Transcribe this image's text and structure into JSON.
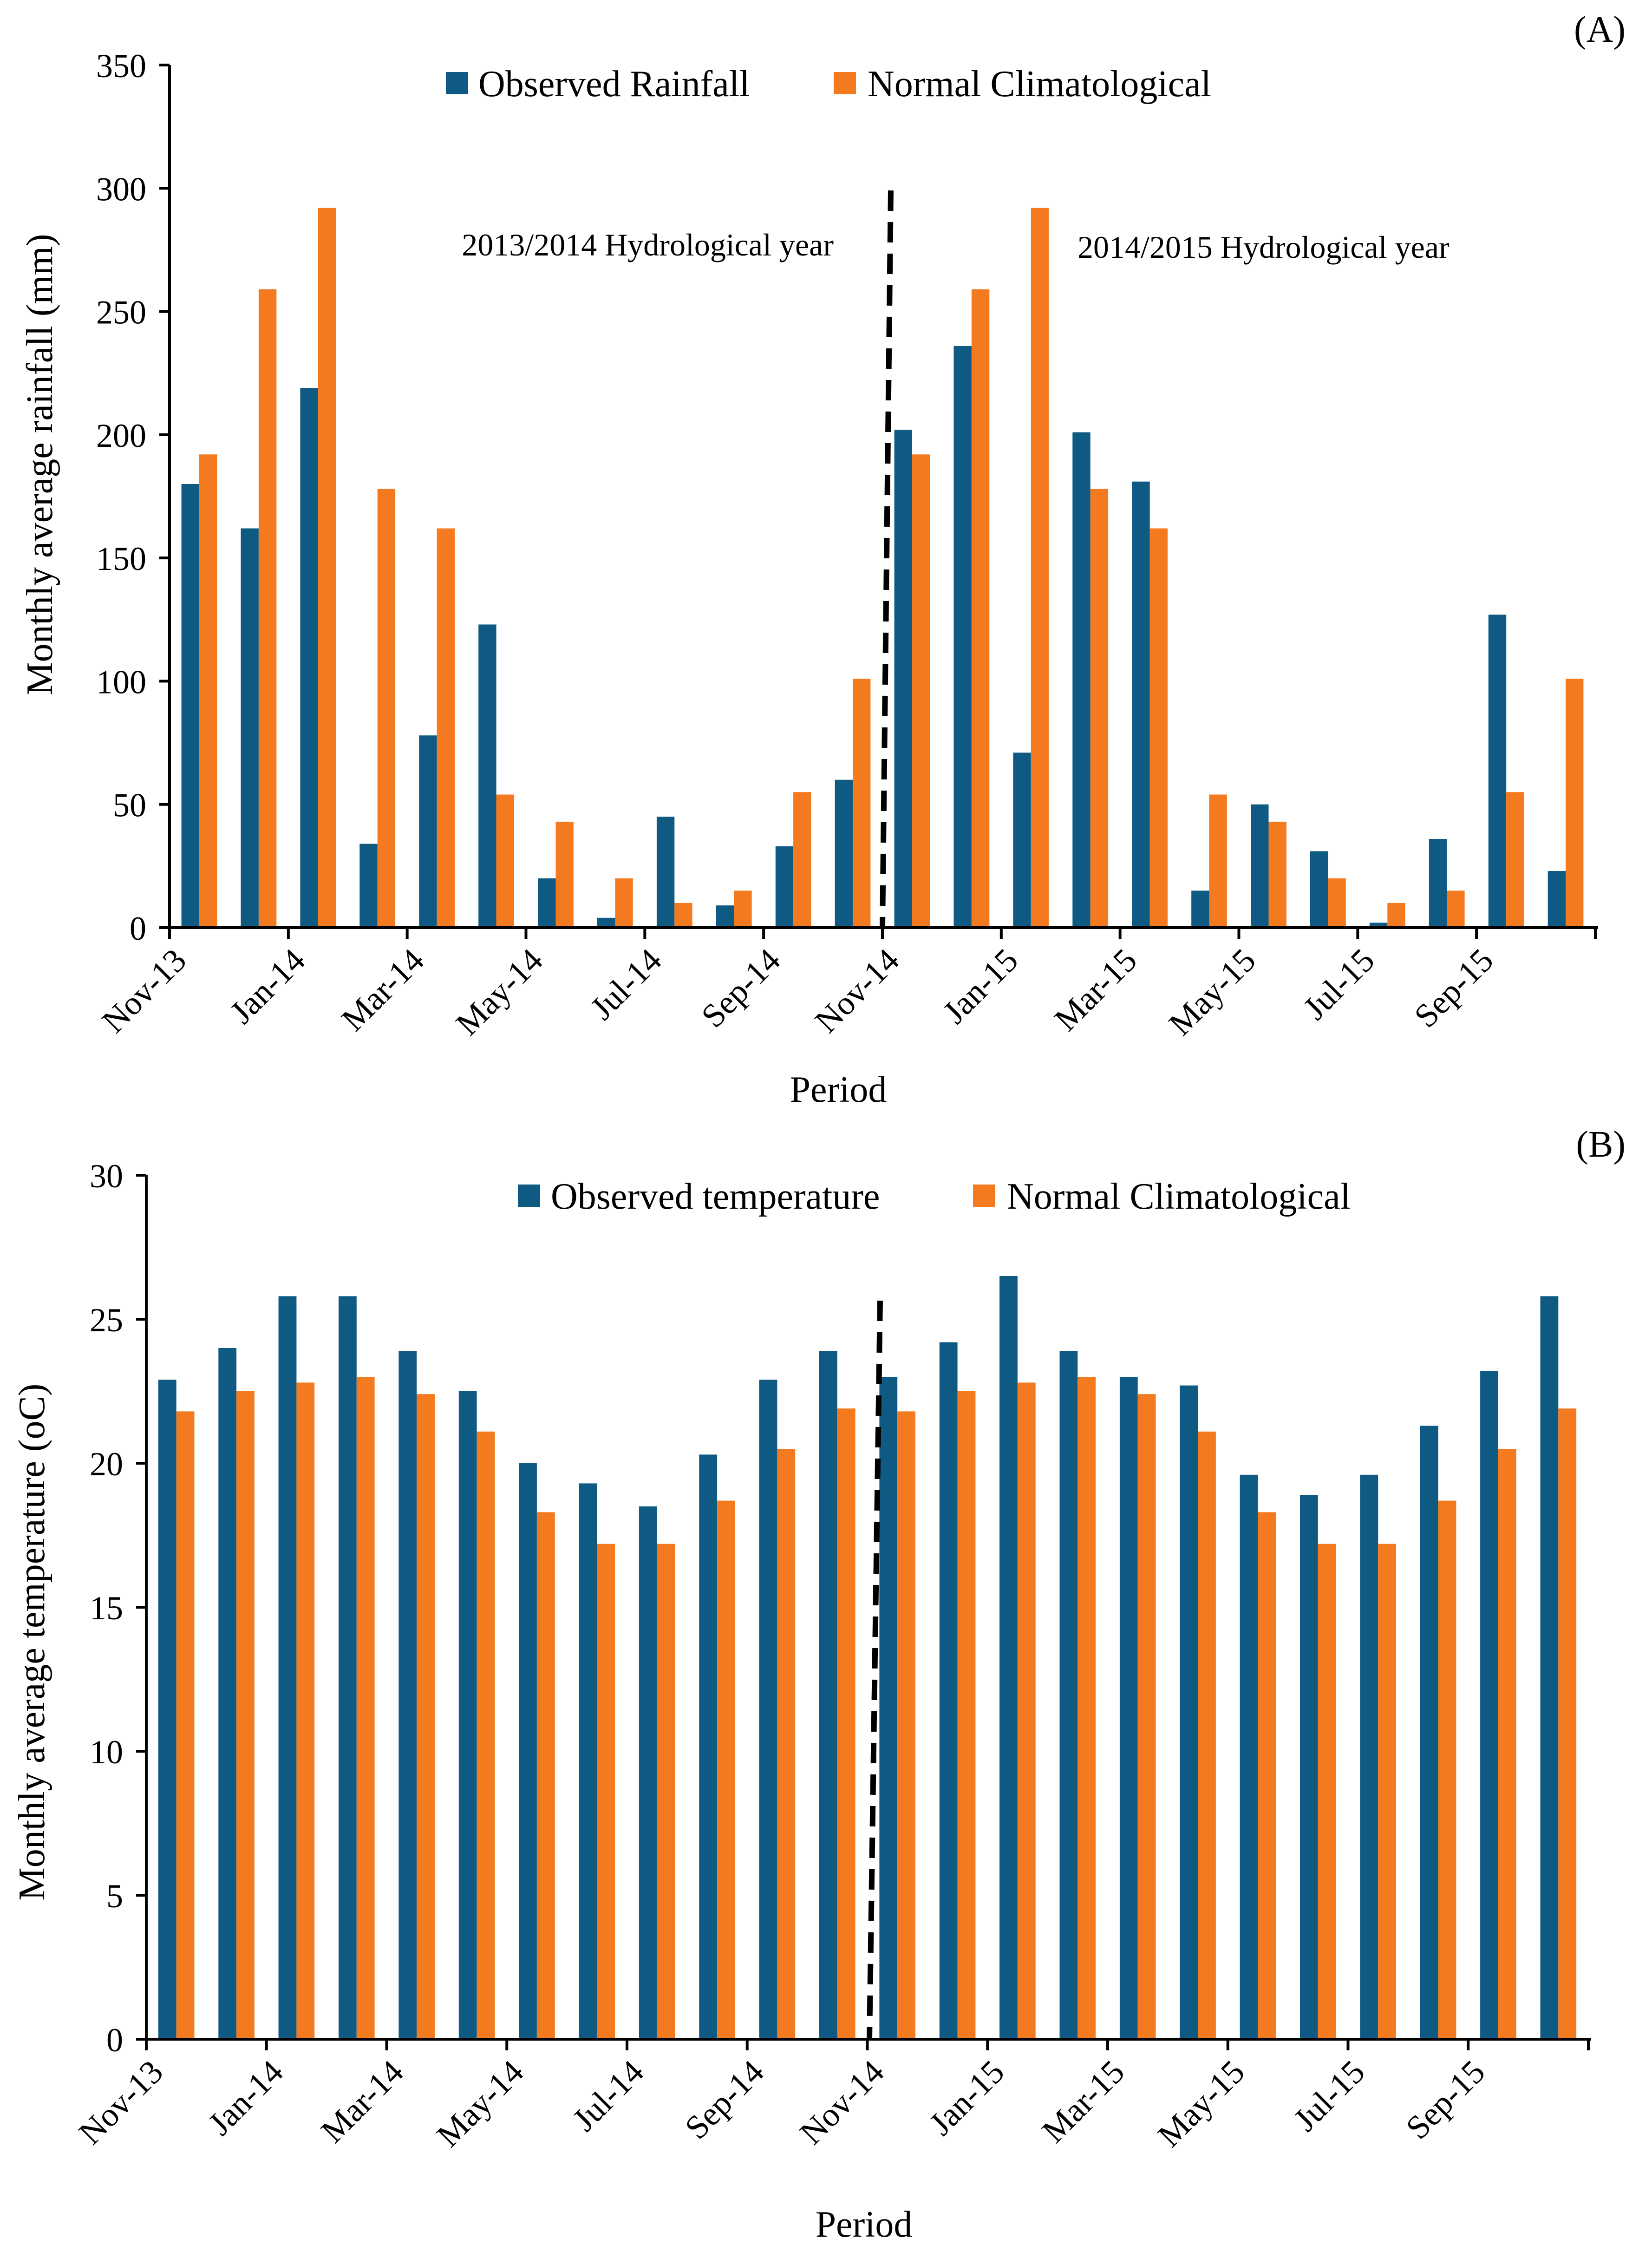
{
  "colors": {
    "observed": "#0F5A82",
    "normal": "#F47A20",
    "axis": "#000000"
  },
  "chart_data": [
    {
      "panel_label": "(A)",
      "type": "bar",
      "title": "",
      "xlabel": "Period",
      "ylabel": "Monthly average rainfall (mm)",
      "ylim": [
        0,
        350
      ],
      "yticks": [
        "0",
        "50",
        "100",
        "150",
        "200",
        "250",
        "300",
        "350"
      ],
      "categories": [
        "Nov-13",
        "Dec-13",
        "Jan-14",
        "Feb-14",
        "Mar-14",
        "Apr-14",
        "May-14",
        "Jun-14",
        "Jul-14",
        "Aug-14",
        "Sep-14",
        "Oct-14",
        "Nov-14",
        "Dec-14",
        "Jan-15",
        "Feb-15",
        "Mar-15",
        "Apr-15",
        "May-15",
        "Jun-15",
        "Jul-15",
        "Aug-15",
        "Sep-15",
        "Oct-15"
      ],
      "tick_labels": [
        "Nov-13",
        "Jan-14",
        "Mar-14",
        "May-14",
        "Jul-14",
        "Sep-14",
        "Nov-14",
        "Jan-15",
        "Mar-15",
        "May-15",
        "Jul-15",
        "Sep-15"
      ],
      "series": [
        {
          "name": "Observed Rainfall",
          "values": [
            180,
            162,
            219,
            34,
            78,
            123,
            20,
            4,
            45,
            9,
            33,
            60,
            202,
            236,
            71,
            201,
            181,
            15,
            50,
            31,
            2,
            36,
            127,
            23
          ]
        },
        {
          "name": "Normal Climatological",
          "values": [
            192,
            259,
            292,
            178,
            162,
            54,
            43,
            20,
            10,
            15,
            55,
            101,
            192,
            259,
            292,
            178,
            162,
            54,
            43,
            20,
            10,
            15,
            55,
            101
          ]
        }
      ],
      "annotations": [
        "2013/2014 Hydrological year",
        "2014/2015 Hydrological year"
      ],
      "legend_position": "top-center",
      "grid": false
    },
    {
      "panel_label": "(B)",
      "type": "bar",
      "title": "",
      "xlabel": "Period",
      "ylabel": "Monthly average temperature (oC)",
      "ylim": [
        0,
        30
      ],
      "yticks": [
        "0",
        "5",
        "10",
        "15",
        "20",
        "25",
        "30"
      ],
      "categories": [
        "Nov-13",
        "Dec-13",
        "Jan-14",
        "Feb-14",
        "Mar-14",
        "Apr-14",
        "May-14",
        "Jun-14",
        "Jul-14",
        "Aug-14",
        "Sep-14",
        "Oct-14",
        "Nov-14",
        "Dec-14",
        "Jan-15",
        "Feb-15",
        "Mar-15",
        "Apr-15",
        "May-15",
        "Jun-15",
        "Jul-15",
        "Aug-15",
        "Sep-15",
        "Oct-15"
      ],
      "tick_labels": [
        "Nov-13",
        "Jan-14",
        "Mar-14",
        "May-14",
        "Jul-14",
        "Sep-14",
        "Nov-14",
        "Jan-15",
        "Mar-15",
        "May-15",
        "Jul-15",
        "Sep-15"
      ],
      "series": [
        {
          "name": "Observed temperature",
          "values": [
            22.9,
            24.0,
            25.8,
            25.8,
            23.9,
            22.5,
            20.0,
            19.3,
            18.5,
            20.3,
            22.9,
            23.9,
            23.0,
            24.2,
            26.5,
            23.9,
            23.0,
            22.7,
            19.6,
            18.9,
            19.6,
            21.3,
            23.2,
            25.8
          ]
        },
        {
          "name": "Normal Climatological",
          "values": [
            21.8,
            22.5,
            22.8,
            23.0,
            22.4,
            21.1,
            18.3,
            17.2,
            17.2,
            18.7,
            20.5,
            21.9,
            21.8,
            22.5,
            22.8,
            23.0,
            22.4,
            21.1,
            18.3,
            17.2,
            17.2,
            18.7,
            20.5,
            21.9
          ]
        }
      ],
      "annotations": [],
      "legend_position": "top-center",
      "grid": false
    }
  ]
}
